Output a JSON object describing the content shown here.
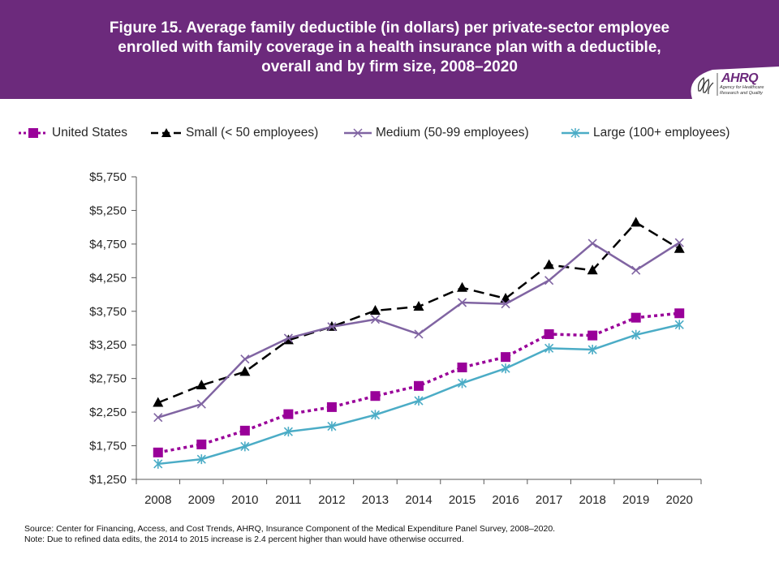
{
  "header": {
    "title": "Figure 15. Average family deductible (in dollars) per private-sector employee enrolled with family coverage in a health insurance plan with a deductible, overall and by firm size, 2008–2020",
    "logo_text": "AHRQ",
    "logo_subtext": "Agency for Healthcare Research and Quality"
  },
  "footer": {
    "source": "Source: Center for Financing, Access, and Cost Trends, AHRQ, Insurance Component of the Medical Expenditure Panel Survey, 2008–2020.",
    "note": "Note: Due to refined data edits, the 2014 to 2015 increase is 2.4 percent higher than would have otherwise occurred."
  },
  "chart_data": {
    "type": "line",
    "title": "",
    "xlabel": "",
    "ylabel": "",
    "x": [
      "2008",
      "2009",
      "2010",
      "2011",
      "2012",
      "2013",
      "2014",
      "2015",
      "2016",
      "2017",
      "2018",
      "2019",
      "2020"
    ],
    "ylim": [
      1250,
      5750
    ],
    "yticks": [
      1250,
      1750,
      2250,
      2750,
      3250,
      3750,
      4250,
      4750,
      5250,
      5750
    ],
    "ytick_labels": [
      "$1,250",
      "$1,750",
      "$2,250",
      "$2,750",
      "$3,250",
      "$3,750",
      "$4,250",
      "$4,750",
      "$5,250",
      "$5,750"
    ],
    "grid": false,
    "legend_position": "top",
    "series": [
      {
        "name": "United States",
        "color": "#990099",
        "dash": "dotted",
        "marker": "square",
        "values": [
          1650,
          1770,
          1975,
          2220,
          2325,
          2490,
          2640,
          2915,
          3070,
          3410,
          3390,
          3655,
          3720
        ]
      },
      {
        "name": "Small (< 50 employees)",
        "color": "#000000",
        "dash": "dashed",
        "marker": "triangle",
        "values": [
          2390,
          2650,
          2850,
          3320,
          3520,
          3760,
          3820,
          4100,
          3940,
          4440,
          4360,
          5070,
          4680
        ]
      },
      {
        "name": "Medium (50-99 employees)",
        "color": "#8064a2",
        "dash": "solid",
        "marker": "x",
        "values": [
          2170,
          2370,
          3040,
          3350,
          3520,
          3630,
          3410,
          3880,
          3860,
          4210,
          4760,
          4360,
          4770
        ]
      },
      {
        "name": "Large (100+ employees)",
        "color": "#4bacc6",
        "dash": "solid",
        "marker": "star",
        "values": [
          1480,
          1550,
          1740,
          1960,
          2040,
          2210,
          2420,
          2680,
          2900,
          3200,
          3180,
          3400,
          3550
        ]
      }
    ]
  }
}
